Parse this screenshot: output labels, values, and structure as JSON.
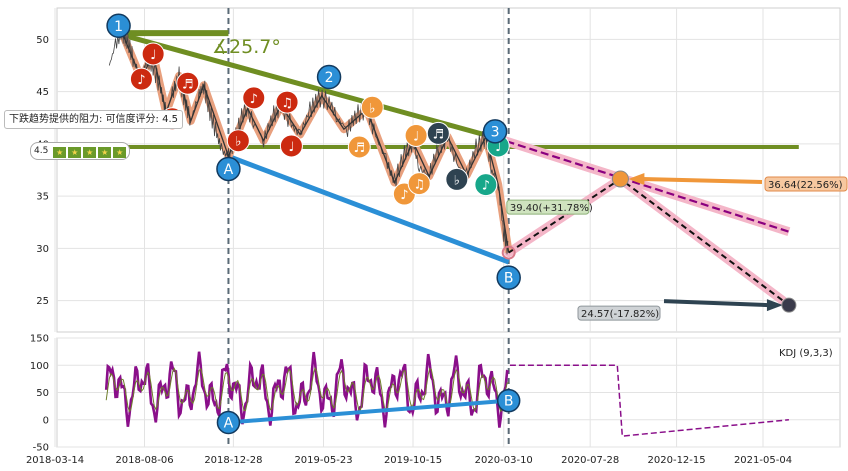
{
  "chart_data": [
    {
      "type": "line",
      "panel": "price",
      "ylim": [
        22,
        53
      ],
      "yticks": [
        25,
        30,
        35,
        40,
        45,
        50
      ],
      "x_ticks": [
        "2018-03-14",
        "2018-08-06",
        "2018-12-28",
        "2019-05-23",
        "2019-10-15",
        "2020-03-10",
        "2020-07-28",
        "2020-12-15",
        "2021-05-04"
      ],
      "angle_label": "∡25.7°",
      "resistance_note": "下跌趋势提供的阻力: 可信度评分: 4.5",
      "rating_value": "4.5",
      "rating_stars": 5,
      "projections": [
        {
          "label": "39.40(+31.78%)",
          "value": 39.4
        },
        {
          "label": "36.64(22.56%)",
          "value": 36.64
        },
        {
          "label": "24.57(-17.82%)",
          "value": 24.57
        }
      ],
      "points": [
        {
          "label": "1",
          "kind": "wave"
        },
        {
          "label": "2",
          "kind": "wave"
        },
        {
          "label": "3",
          "kind": "wave"
        },
        {
          "label": "A",
          "kind": "pivot"
        },
        {
          "label": "B",
          "kind": "pivot"
        }
      ],
      "price_series": [
        [
          "2018-06-10",
          47.5
        ],
        [
          "2018-06-20",
          49.5
        ],
        [
          "2018-07-01",
          50.6
        ],
        [
          "2018-07-10",
          49.8
        ],
        [
          "2018-07-20",
          47.9
        ],
        [
          "2018-08-01",
          46.2
        ],
        [
          "2018-08-10",
          48.2
        ],
        [
          "2018-08-20",
          47.4
        ],
        [
          "2018-09-01",
          45.3
        ],
        [
          "2018-09-10",
          43.0
        ],
        [
          "2018-09-20",
          44.8
        ],
        [
          "2018-10-01",
          46.5
        ],
        [
          "2018-10-10",
          44.2
        ],
        [
          "2018-10-20",
          42.2
        ],
        [
          "2018-11-01",
          44.6
        ],
        [
          "2018-11-10",
          45.6
        ],
        [
          "2018-11-20",
          43.0
        ],
        [
          "2018-12-01",
          40.9
        ],
        [
          "2018-12-10",
          39.3
        ],
        [
          "2018-12-20",
          38.8
        ],
        [
          "2019-01-01",
          40.7
        ],
        [
          "2019-01-15",
          43.4
        ],
        [
          "2019-02-01",
          42.0
        ],
        [
          "2019-02-15",
          40.3
        ],
        [
          "2019-03-01",
          42.6
        ],
        [
          "2019-03-15",
          43.7
        ],
        [
          "2019-04-01",
          41.8
        ],
        [
          "2019-04-15",
          40.9
        ],
        [
          "2019-05-01",
          43.2
        ],
        [
          "2019-05-15",
          44.4
        ],
        [
          "2019-06-01",
          44.1
        ],
        [
          "2019-06-15",
          42.4
        ],
        [
          "2019-07-01",
          41.4
        ],
        [
          "2019-07-15",
          42.8
        ],
        [
          "2019-08-01",
          43.3
        ],
        [
          "2019-08-15",
          40.8
        ],
        [
          "2019-09-01",
          38.5
        ],
        [
          "2019-09-15",
          36.3
        ],
        [
          "2019-10-01",
          39.1
        ],
        [
          "2019-10-15",
          40.2
        ],
        [
          "2019-10-25",
          37.7
        ],
        [
          "2019-11-10",
          36.9
        ],
        [
          "2019-11-25",
          39.7
        ],
        [
          "2019-12-10",
          40.7
        ],
        [
          "2019-12-25",
          38.0
        ],
        [
          "2020-01-10",
          37.0
        ],
        [
          "2020-01-25",
          39.6
        ],
        [
          "2020-02-10",
          40.7
        ],
        [
          "2020-02-20",
          37.4
        ],
        [
          "2020-03-01",
          36.1
        ],
        [
          "2020-03-10",
          31.5
        ],
        [
          "2020-03-18",
          29.6
        ]
      ],
      "triangle_trace": [
        [
          "2018-07-01",
          50.6
        ],
        [
          "2018-08-01",
          46.2
        ],
        [
          "2018-08-20",
          48.6
        ],
        [
          "2018-09-10",
          43.0
        ],
        [
          "2018-10-01",
          46.5
        ],
        [
          "2018-10-20",
          42.2
        ],
        [
          "2018-11-10",
          45.6
        ],
        [
          "2018-12-20",
          38.8
        ],
        [
          "2019-01-20",
          43.4
        ],
        [
          "2019-02-15",
          40.3
        ],
        [
          "2019-03-15",
          43.7
        ],
        [
          "2019-04-15",
          40.9
        ],
        [
          "2019-05-20",
          44.6
        ],
        [
          "2019-06-25",
          41.4
        ],
        [
          "2019-08-01",
          43.3
        ],
        [
          "2019-09-15",
          36.3
        ],
        [
          "2019-10-15",
          40.2
        ],
        [
          "2019-11-10",
          36.9
        ],
        [
          "2019-12-10",
          40.7
        ],
        [
          "2020-01-10",
          37.0
        ],
        [
          "2020-02-10",
          40.7
        ],
        [
          "2020-03-01",
          36.1
        ],
        [
          "2020-03-18",
          29.6
        ]
      ],
      "forecast_path": [
        [
          "2020-03-18",
          29.6
        ],
        [
          "2020-09-15",
          36.64
        ],
        [
          "2021-06-15",
          24.57
        ]
      ],
      "channel_upper": [
        [
          "2018-06-20",
          50.6
        ],
        [
          "2020-02-25",
          40.6
        ],
        [
          "2021-06-15",
          31.6
        ]
      ],
      "channel_lower": [
        [
          "2018-12-20",
          38.8
        ],
        [
          "2020-03-18",
          28.7
        ]
      ],
      "support_line": [
        [
          "2018-03-14",
          39.7
        ],
        [
          "2021-07-01",
          39.7
        ]
      ]
    },
    {
      "type": "line",
      "panel": "indicator",
      "title": "KDJ (9,3,3)",
      "ylim": [
        -50,
        150
      ],
      "yticks": [
        -50,
        0,
        50,
        100,
        150
      ],
      "kdj_trend": {
        "from_label": "A",
        "to_label": "B",
        "from": [
          "2018-12-20",
          -5
        ],
        "to": [
          "2020-03-18",
          35
        ]
      },
      "forecast_levels": [
        [
          "2020-03-20",
          100
        ],
        [
          "2020-09-10",
          100
        ],
        [
          "2020-09-18",
          -30
        ],
        [
          "2021-06-15",
          0
        ]
      ]
    }
  ]
}
